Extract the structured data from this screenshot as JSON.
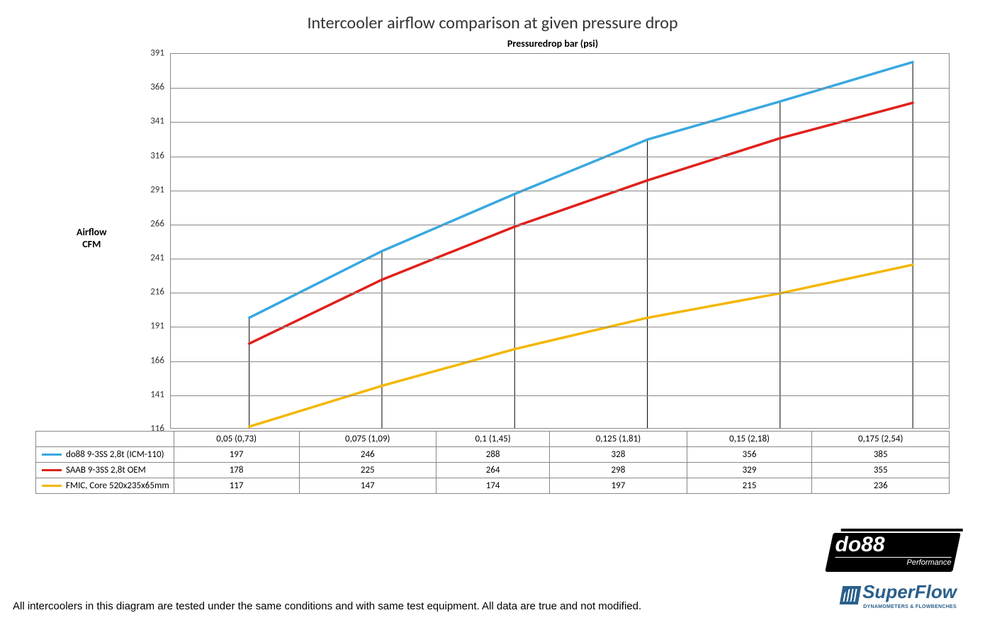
{
  "title": "Intercooler airflow comparison at given pressure drop",
  "ylabel_line1": "Airflow",
  "ylabel_line2": "CFM",
  "xlabel": "Pressuredrop bar (psi)",
  "footnote": "All intercoolers in this diagram are tested under the same conditions and with same test equipment. All data are true and not modified.",
  "logo1_main": "do88",
  "logo1_sub": "Performance",
  "logo2_main": "SuperFlow",
  "logo2_sub": "DYNAMOMETERS & FLOWBENCHES",
  "chart": {
    "type": "line",
    "background_color": "#ffffff",
    "grid_color": "#888888",
    "ylim_min": 116,
    "ylim_max": 391,
    "ytick_step": 25,
    "yticks": [
      116,
      141,
      166,
      191,
      216,
      241,
      266,
      291,
      316,
      341,
      366,
      391
    ],
    "categories": [
      "0,05 (0,73)",
      "0,075 (1,09)",
      "0,1 (1,45)",
      "0,125 (1,81)",
      "0,15 (2,18)",
      "0,175 (2,54)"
    ],
    "line_width": 3.5,
    "drop_line_color": "#000000",
    "drop_line_width": 1,
    "series": [
      {
        "name": "do88 9-3SS 2,8t (ICM-110)",
        "color": "#39a8e0",
        "values": [
          197,
          246,
          288,
          328,
          356,
          385
        ]
      },
      {
        "name": "SAAB 9-3SS 2,8t OEM",
        "color": "#e0201b",
        "values": [
          178,
          225,
          264,
          298,
          329,
          355
        ]
      },
      {
        "name": "FMIC, Core 520x235x65mm",
        "color": "#f3b700",
        "values": [
          117,
          147,
          174,
          197,
          215,
          236
        ]
      }
    ]
  }
}
